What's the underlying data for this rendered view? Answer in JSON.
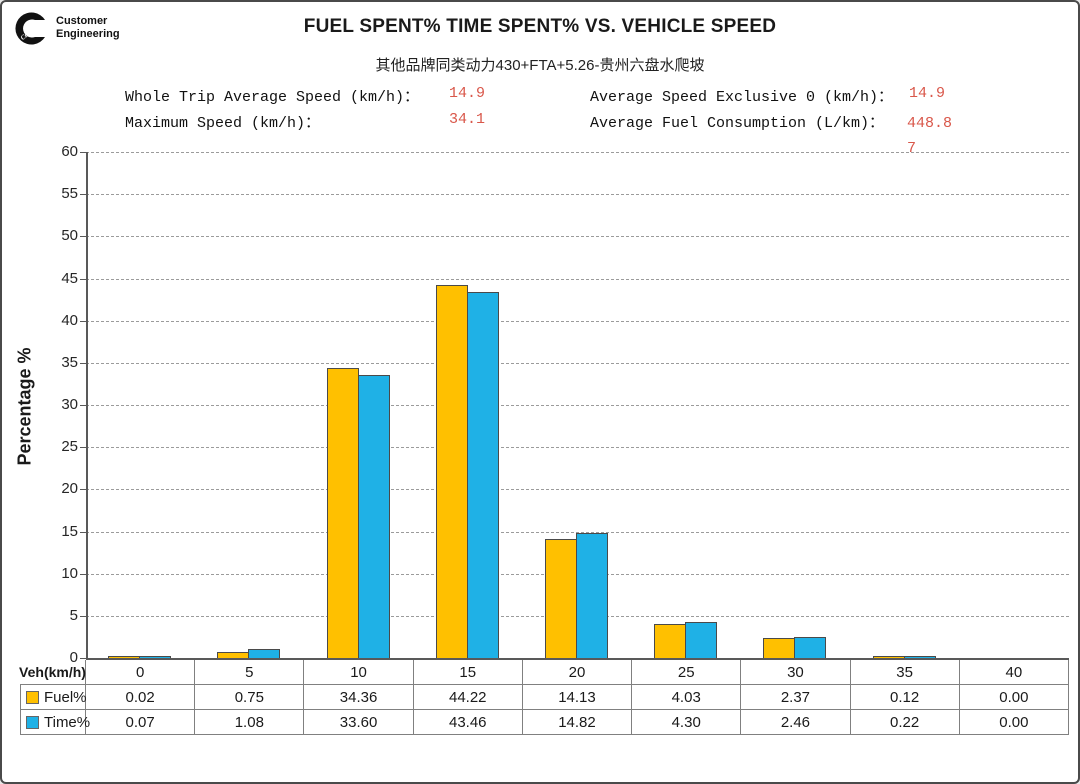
{
  "logo": {
    "brand": "Cummins",
    "line1": "Customer",
    "line2": "Engineering"
  },
  "title": "FUEL SPENT% TIME SPENT% VS. VEHICLE SPEED",
  "subtitle": "其他品牌同类动力430+FTA+5.26-贵州六盘水爬坡",
  "stats": [
    {
      "label": "Whole Trip Average Speed (km/h)：",
      "value": "14.9"
    },
    {
      "label": "Average Speed Exclusive 0 (km/h)：",
      "value": "14.9"
    },
    {
      "label": "Maximum Speed (km/h)：",
      "value": "34.1"
    },
    {
      "label": "Average Fuel Consumption (L/km)：",
      "value": "448.87"
    }
  ],
  "colors": {
    "fuel": "#FFC000",
    "time": "#1FB1E6",
    "bar_outline": "#4a4a4a",
    "stat_value_red": "#d9574a"
  },
  "chart_data": {
    "type": "bar",
    "title": "FUEL SPENT% TIME SPENT% VS. VEHICLE SPEED",
    "subtitle": "其他品牌同类动力430+FTA+5.26-贵州六盘水爬坡",
    "categories": [
      "0",
      "5",
      "10",
      "15",
      "20",
      "25",
      "30",
      "35",
      "40"
    ],
    "series": [
      {
        "name": "Fuel%",
        "color": "#FFC000",
        "values": [
          0.02,
          0.75,
          34.36,
          44.22,
          14.13,
          4.03,
          2.37,
          0.12,
          0.0
        ]
      },
      {
        "name": "Time%",
        "color": "#1FB1E6",
        "values": [
          0.07,
          1.08,
          33.6,
          43.46,
          14.82,
          4.3,
          2.46,
          0.22,
          0.0
        ]
      }
    ],
    "xlabel": "Veh(km/h)",
    "ylabel": "Percentage %",
    "ylim": [
      0,
      60
    ],
    "ytick_step": 5,
    "grid": "horizontal dashed",
    "legend_position": "table row headers"
  },
  "table": {
    "row_header": "Veh(km/h)",
    "columns": [
      "0",
      "5",
      "10",
      "15",
      "20",
      "25",
      "30",
      "35",
      "40"
    ],
    "rows": [
      {
        "label": "Fuel%",
        "values": [
          "0.02",
          "0.75",
          "34.36",
          "44.22",
          "14.13",
          "4.03",
          "2.37",
          "0.12",
          "0.00"
        ]
      },
      {
        "label": "Time%",
        "values": [
          "0.07",
          "1.08",
          "33.60",
          "43.46",
          "14.82",
          "4.30",
          "2.46",
          "0.22",
          "0.00"
        ]
      }
    ]
  }
}
